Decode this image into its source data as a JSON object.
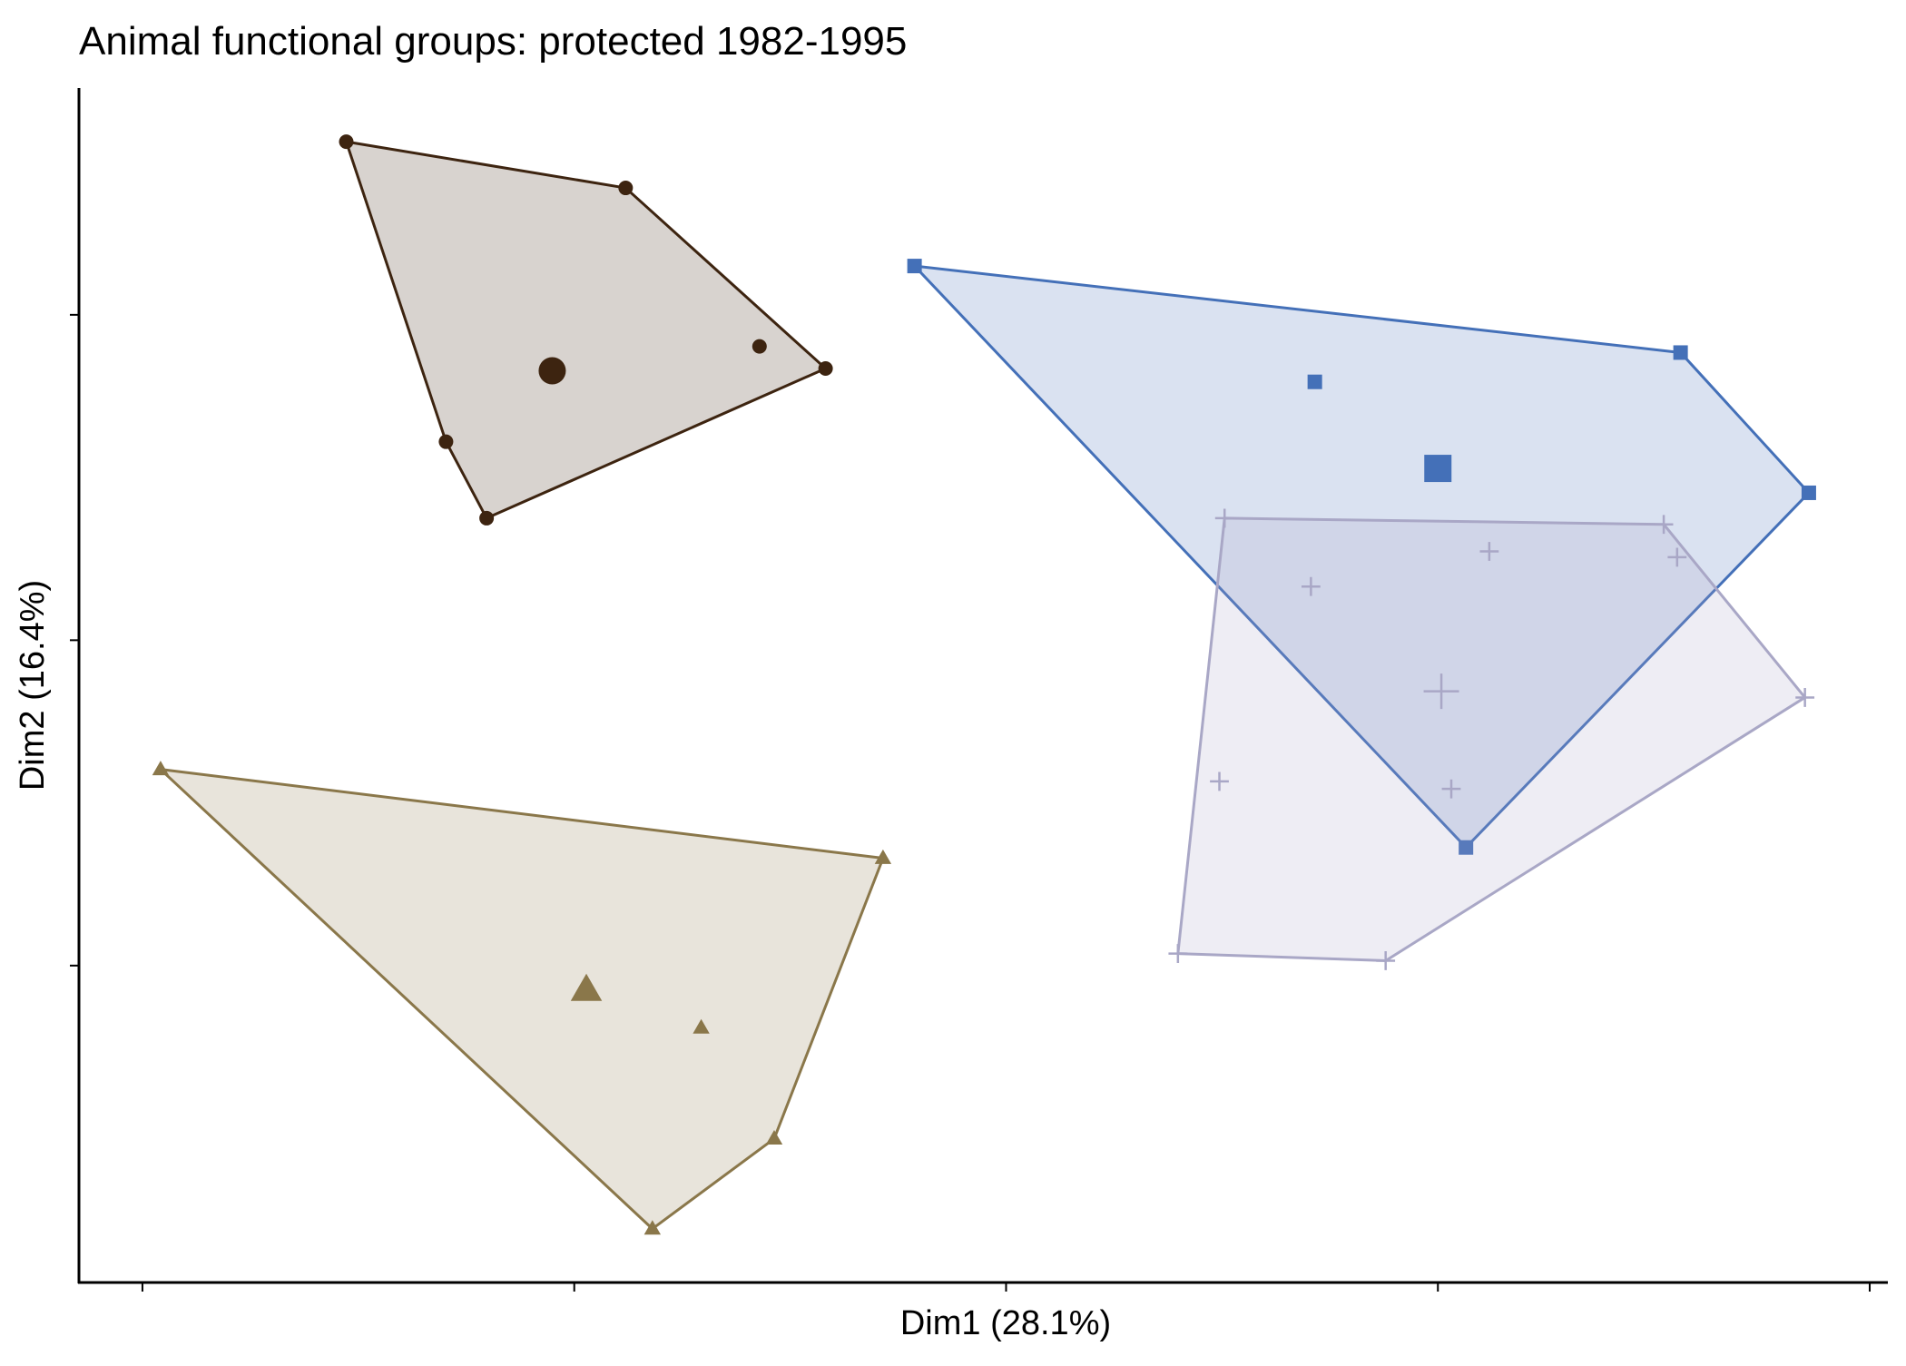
{
  "chart_data": {
    "type": "scatter",
    "title": "Animal functional groups: protected 1982-1995",
    "x_label": "Dim1 (28.1%)",
    "y_label": "Dim2 (16.4%)",
    "xlim": [
      -2.147,
      2.042
    ],
    "ylim": [
      -1.974,
      1.697
    ],
    "xticks": [
      -2,
      -1,
      0,
      1,
      2
    ],
    "yticks": [
      -1,
      0,
      1
    ],
    "hulls": true,
    "series": [
      {
        "color": "#3d2410",
        "marker": "circle",
        "x": [
          -1.528,
          -0.881,
          -0.418,
          -1.203,
          -1.297,
          -0.571
        ],
        "y": [
          1.532,
          1.39,
          0.835,
          0.375,
          0.61,
          0.903
        ],
        "centroid": {
          "x": -1.051,
          "y": 0.828
        }
      },
      {
        "color": "#8a774a",
        "marker": "triangle",
        "x": [
          -1.958,
          -0.285,
          -0.537,
          -0.819,
          -0.706
        ],
        "y": [
          -0.397,
          -0.67,
          -1.532,
          -1.809,
          -1.191
        ],
        "centroid": {
          "x": -0.972,
          "y": -1.075
        }
      },
      {
        "color": "#4470b8",
        "marker": "square",
        "x": [
          -0.212,
          1.562,
          1.859,
          1.065,
          0.715
        ],
        "y": [
          1.15,
          0.884,
          0.453,
          -0.637,
          0.794
        ],
        "centroid": {
          "x": 1.0,
          "y": 0.528
        }
      },
      {
        "color": "#a9a7c6",
        "marker": "plus",
        "x": [
          0.506,
          1.523,
          1.85,
          0.879,
          0.398,
          1.119,
          1.554,
          0.706,
          0.494,
          1.031
        ],
        "y": [
          0.375,
          0.356,
          -0.176,
          -0.985,
          -0.963,
          0.273,
          0.255,
          0.165,
          -0.434,
          -0.457
        ],
        "centroid": {
          "x": 1.008,
          "y": -0.157
        }
      }
    ]
  }
}
